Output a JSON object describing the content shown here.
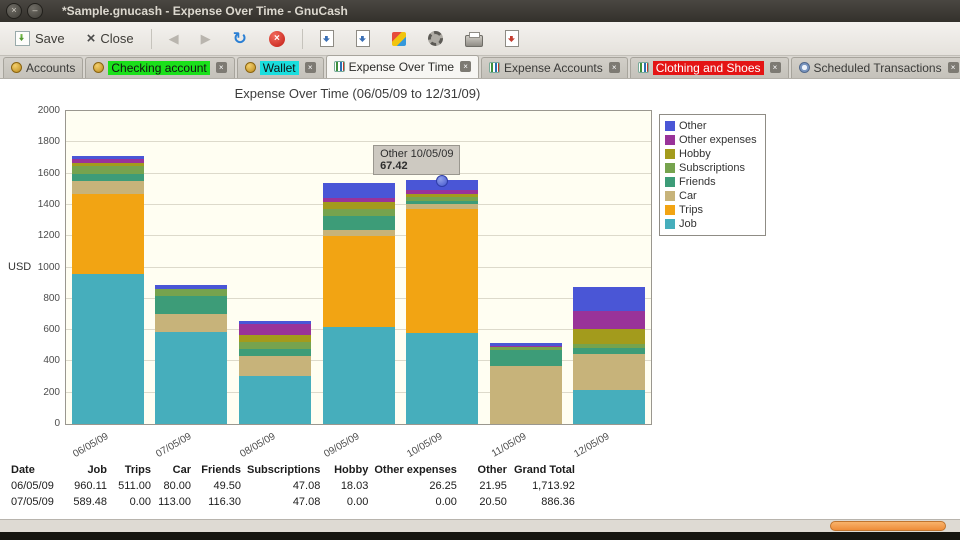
{
  "window": {
    "title": "*Sample.gnucash - Expense Over Time - GnuCash"
  },
  "toolbar": {
    "save_label": "Save",
    "close_label": "Close",
    "back_glyph": "◀",
    "forward_glyph": "▶",
    "refresh_glyph": "↻",
    "stop_glyph": "×",
    "close_glyph": "×"
  },
  "tabs": [
    {
      "label": "Accounts",
      "active": false,
      "label_style": "plain",
      "icon": "accounts-icon",
      "closable": false
    },
    {
      "label": "Checking account",
      "active": false,
      "label_style": "green",
      "icon": "register-icon",
      "closable": true
    },
    {
      "label": "Wallet",
      "active": false,
      "label_style": "cyan",
      "icon": "register-icon",
      "closable": true
    },
    {
      "label": "Expense Over Time",
      "active": true,
      "label_style": "plain",
      "icon": "report-icon",
      "closable": true
    },
    {
      "label": "Expense Accounts",
      "active": false,
      "label_style": "plain",
      "icon": "report-icon",
      "closable": true
    },
    {
      "label": "Clothing and Shoes",
      "active": false,
      "label_style": "red",
      "icon": "report-icon",
      "closable": true
    },
    {
      "label": "Scheduled Transactions",
      "active": false,
      "label_style": "plain",
      "icon": "schedule-icon",
      "closable": true
    }
  ],
  "chart_data": {
    "type": "bar",
    "stacked": true,
    "title": "Expense Over Time (06/05/09 to 12/31/09)",
    "ylabel": "USD",
    "ylim": [
      0,
      2000
    ],
    "ytick_step": 200,
    "grid": true,
    "legend_position": "right",
    "categories": [
      "06/05/09",
      "07/05/09",
      "08/05/09",
      "09/05/09",
      "10/05/09",
      "11/05/09",
      "12/05/09"
    ],
    "series": [
      {
        "name": "Job",
        "color": "#46aebc",
        "values": [
          960.11,
          589.48,
          310,
          620,
          580,
          0,
          220
        ]
      },
      {
        "name": "Trips",
        "color": "#f2a413",
        "values": [
          511.0,
          0.0,
          0,
          580,
          795,
          0,
          0
        ]
      },
      {
        "name": "Car",
        "color": "#c7b37a",
        "values": [
          80.0,
          113.0,
          125,
          40,
          30,
          370,
          230
        ]
      },
      {
        "name": "Friends",
        "color": "#3d9c78",
        "values": [
          49.5,
          116.3,
          45,
          90,
          20,
          105,
          35
        ]
      },
      {
        "name": "Subscriptions",
        "color": "#76a34e",
        "values": [
          47.08,
          47.08,
          47,
          47,
          25,
          15,
          25
        ]
      },
      {
        "name": "Hobby",
        "color": "#a39b1c",
        "values": [
          18.03,
          0.0,
          40,
          40,
          20,
          0,
          100
        ]
      },
      {
        "name": "Other expenses",
        "color": "#993399",
        "values": [
          26.25,
          0.0,
          75,
          30,
          25,
          10,
          115
        ]
      },
      {
        "name": "Other",
        "color": "#4a56d6",
        "values": [
          21.95,
          20.5,
          15,
          90,
          67.42,
          20,
          150
        ]
      }
    ],
    "legend": [
      "Other",
      "Other expenses",
      "Hobby",
      "Subscriptions",
      "Friends",
      "Car",
      "Trips",
      "Job"
    ]
  },
  "tooltip": {
    "label": "Other 10/05/09",
    "series": "Other",
    "category": "10/05/09",
    "value_label": "67.42"
  },
  "table": {
    "headers": [
      "Date",
      "Job",
      "Trips",
      "Car",
      "Friends",
      "Subscriptions",
      "Hobby",
      "Other expenses",
      "Other",
      "Grand Total"
    ],
    "rows": [
      [
        "06/05/09",
        "960.11",
        "511.00",
        "80.00",
        "49.50",
        "47.08",
        "18.03",
        "26.25",
        "21.95",
        "1,713.92"
      ],
      [
        "07/05/09",
        "589.48",
        "0.00",
        "113.00",
        "116.30",
        "47.08",
        "0.00",
        "0.00",
        "20.50",
        "886.36"
      ]
    ]
  }
}
